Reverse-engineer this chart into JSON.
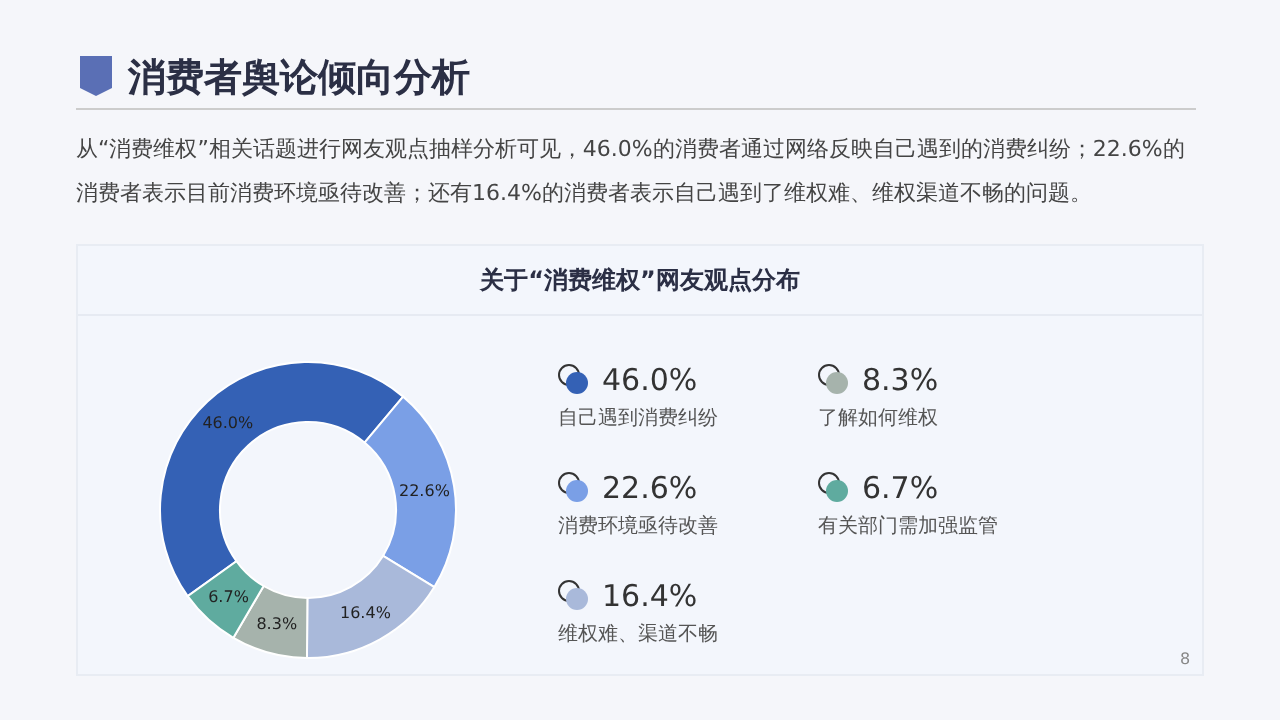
{
  "chart_data": {
    "type": "donut",
    "title": "消费者舆论倾向分析",
    "subtitle": "从“消费维权”相关话题进行网友观点抽样分析可见，46.0%的消费者通过网络反映自己遇到的消费纠纷；22.6%的消费者表示目前消费环境亟待改善；还有16.4%的消费者表示自己遇到了维权难、维权渠道不畅的问题。",
    "xlabel": "关于“消费维权”网友观点分布",
    "categories": [
      "自己遇到消费纠纷",
      "消费环境亟待改善",
      "维权难、渠道不畅",
      "了解如何维权",
      "有关部门需加强监管"
    ],
    "values": [
      46.0,
      22.6,
      16.4,
      8.3,
      6.7
    ],
    "colors": [
      "#3461b5",
      "#7a9fe6",
      "#a9b9da",
      "#a6b3ac",
      "#5fab9f"
    ],
    "value_labels": [
      "46.0%",
      "22.6%",
      "16.4%",
      "8.3%",
      "6.7%"
    ],
    "legend": "right",
    "annotations": [
      "8"
    ]
  }
}
